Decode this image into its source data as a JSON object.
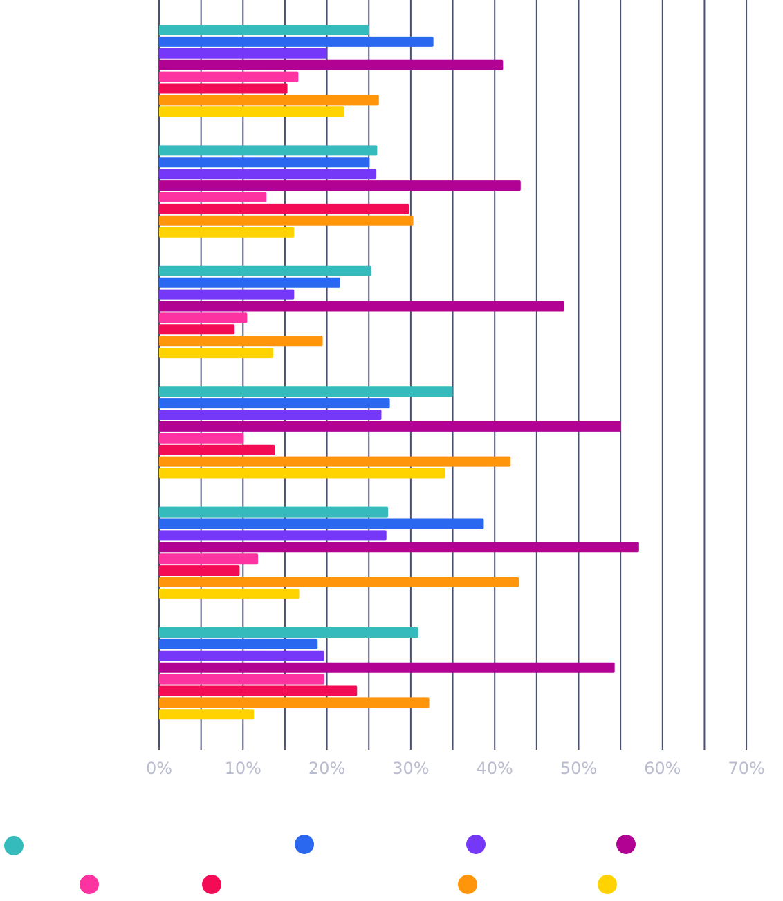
{
  "chart_data": {
    "type": "bar",
    "orientation": "horizontal",
    "title": "",
    "xlabel": "",
    "ylabel": "",
    "xlim": [
      0,
      70
    ],
    "x_tick_labels": [
      "0%",
      "10%",
      "20%",
      "30%",
      "40%",
      "50%",
      "60%",
      "70%"
    ],
    "grid": true,
    "legend_placement": "bottom",
    "categories": [
      "",
      "",
      "",
      "",
      "",
      ""
    ],
    "series": [
      {
        "color": "#35bbbb",
        "values": [
          25.0,
          26.0,
          25.3,
          35.0,
          27.3,
          30.9
        ]
      },
      {
        "color": "#2968ef",
        "values": [
          32.7,
          25.1,
          21.6,
          27.5,
          38.7,
          18.9
        ]
      },
      {
        "color": "#7538f8",
        "values": [
          20.0,
          25.9,
          16.1,
          26.5,
          27.1,
          19.7
        ]
      },
      {
        "color": "#b10294",
        "values": [
          41.0,
          43.1,
          48.3,
          55.0,
          57.2,
          54.3
        ]
      },
      {
        "color": "#fc33a0",
        "values": [
          16.6,
          12.8,
          10.5,
          10.1,
          11.8,
          19.7
        ]
      },
      {
        "color": "#f30c55",
        "values": [
          15.3,
          29.8,
          9.0,
          13.8,
          9.6,
          23.6
        ]
      },
      {
        "color": "#fe950a",
        "values": [
          26.2,
          30.3,
          19.5,
          41.9,
          42.9,
          32.2
        ]
      },
      {
        "color": "#ffd300",
        "values": [
          22.1,
          16.1,
          13.6,
          34.1,
          16.7,
          11.3
        ]
      }
    ]
  },
  "colors": {
    "grid": "#4b5175",
    "tick_text": "#b9bdcf"
  }
}
